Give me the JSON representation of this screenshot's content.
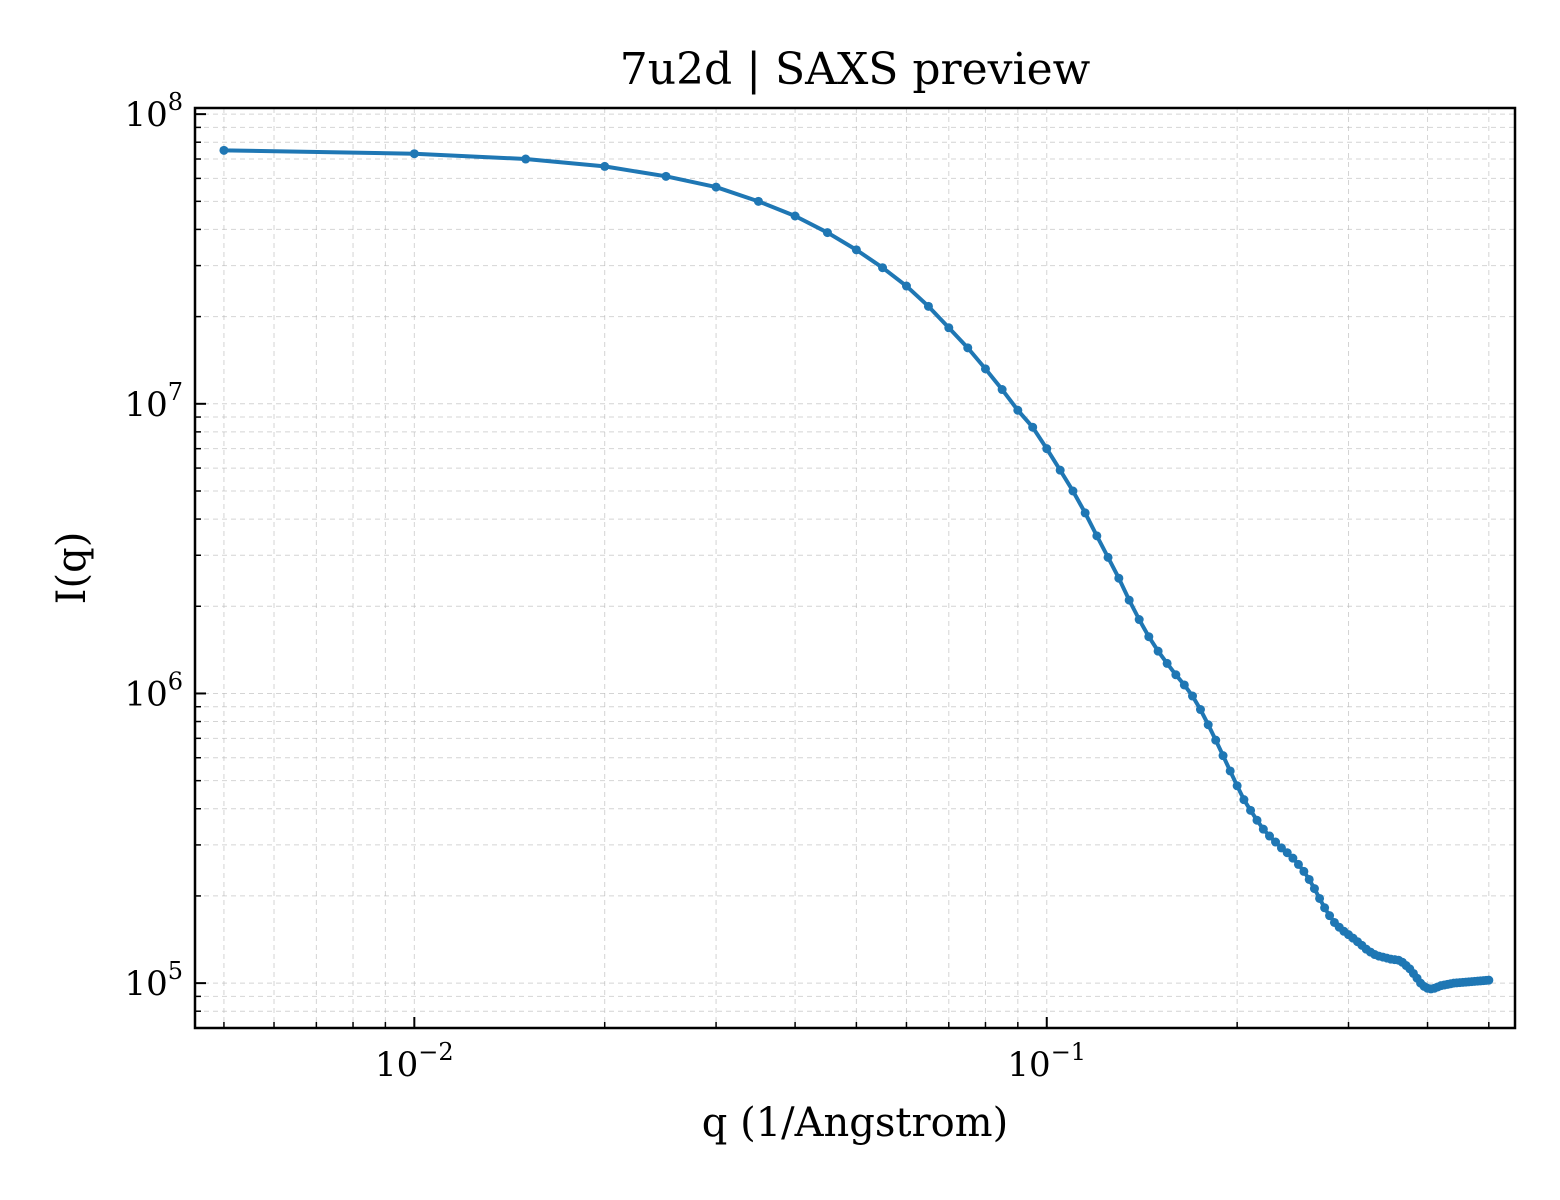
{
  "chart_data": {
    "type": "line",
    "title": "7u2d | SAXS preview",
    "xlabel": "q (1/Angstrom)",
    "ylabel": "I(q)",
    "xscale": "log",
    "yscale": "log",
    "xlim": [
      0.0045,
      0.55
    ],
    "ylim": [
      70000,
      105000000
    ],
    "grid": true,
    "x_ticks": [
      {
        "base": "10",
        "exp": "−2",
        "value": 0.01
      },
      {
        "base": "10",
        "exp": "−1",
        "value": 0.1
      }
    ],
    "y_ticks": [
      {
        "base": "10",
        "exp": "5",
        "value": 100000
      },
      {
        "base": "10",
        "exp": "6",
        "value": 1000000
      },
      {
        "base": "10",
        "exp": "7",
        "value": 10000000
      },
      {
        "base": "10",
        "exp": "8",
        "value": 100000000
      }
    ],
    "line_color": "#1f77b4",
    "series": [
      {
        "x": [
          0.005,
          0.01,
          0.015,
          0.02,
          0.025,
          0.03,
          0.035,
          0.04,
          0.045,
          0.05,
          0.055,
          0.06,
          0.065,
          0.07,
          0.075,
          0.08,
          0.085,
          0.09,
          0.095,
          0.1,
          0.105,
          0.11,
          0.115,
          0.12,
          0.125,
          0.13,
          0.135,
          0.14,
          0.145,
          0.15,
          0.155,
          0.16,
          0.165,
          0.17,
          0.175,
          0.18,
          0.185,
          0.19,
          0.195,
          0.2,
          0.205,
          0.21,
          0.215,
          0.22,
          0.225,
          0.23,
          0.235,
          0.24,
          0.245,
          0.25,
          0.255,
          0.26,
          0.265,
          0.27,
          0.275,
          0.28,
          0.285,
          0.29,
          0.295,
          0.3,
          0.305,
          0.31,
          0.315,
          0.32,
          0.325,
          0.33,
          0.335,
          0.34,
          0.345,
          0.35,
          0.355,
          0.36,
          0.365,
          0.37,
          0.375,
          0.38,
          0.385,
          0.39,
          0.395,
          0.4,
          0.405,
          0.41,
          0.415,
          0.42,
          0.425,
          0.43,
          0.435,
          0.44,
          0.445,
          0.45,
          0.455,
          0.46,
          0.465,
          0.47,
          0.475,
          0.48,
          0.485,
          0.49,
          0.495,
          0.5
        ],
        "y": [
          75000000,
          73000000,
          70000000,
          66000000,
          61000000,
          56000000,
          50000000,
          44500000,
          39000000,
          34000000,
          29500000,
          25500000,
          21700000,
          18300000,
          15600000,
          13200000,
          11200000,
          9500000,
          8300000,
          7000000,
          5900000,
          5000000,
          4200000,
          3500000,
          2950000,
          2500000,
          2100000,
          1800000,
          1570000,
          1400000,
          1270000,
          1160000,
          1070000,
          980000,
          880000,
          780000,
          690000,
          610000,
          540000,
          480000,
          430000,
          395000,
          365000,
          340000,
          322000,
          307000,
          293000,
          282000,
          270000,
          257000,
          243000,
          228000,
          212000,
          196000,
          182000,
          171000,
          162000,
          156000,
          151000,
          147000,
          143000,
          139000,
          135000,
          131000,
          128000,
          125500,
          124000,
          123000,
          122000,
          121000,
          120500,
          120000,
          118000,
          115000,
          112000,
          108000,
          104000,
          100000,
          97500,
          96000,
          95500,
          96000,
          97000,
          98000,
          98500,
          99000,
          99500,
          100000,
          100200,
          100400,
          100600,
          100800,
          101000,
          101200,
          101400,
          101600,
          101800,
          102000,
          102200,
          102400
        ]
      }
    ]
  }
}
